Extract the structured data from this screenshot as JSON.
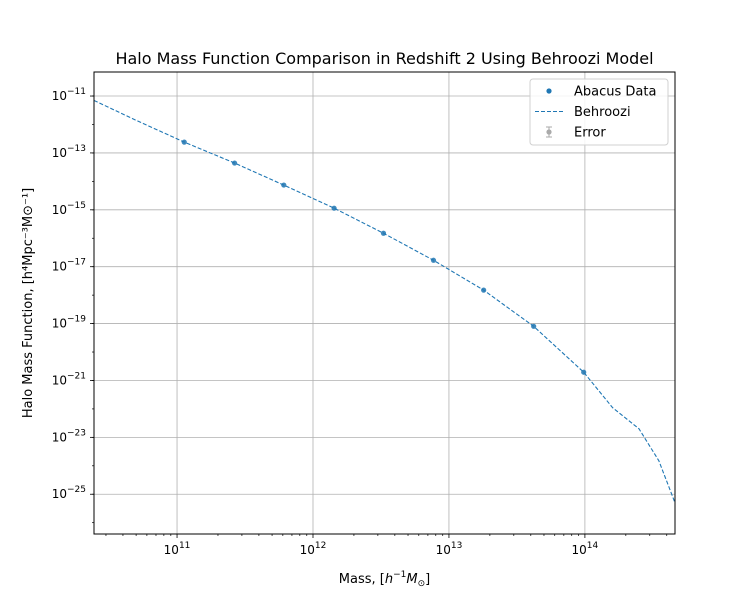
{
  "chart_data": {
    "type": "scatter",
    "title": "Halo Mass Function Comparison in Redshift 2 Using Behroozi Model",
    "xlabel_prefix": "Mass, [",
    "xlabel_math": "h",
    "xlabel_sup": "−1",
    "xlabel_math2": "M",
    "xlabel_sub": "⊙",
    "xlabel_suffix": "]",
    "ylabel": "Halo Mass Function, [h⁴Mpc⁻³M⊙⁻¹]",
    "x_scale": "log",
    "y_scale": "log",
    "xlim": [
      24500000000.0,
      460000000000000.0
    ],
    "ylim": [
      4e-27,
      7e-11
    ],
    "x_ticks": [
      {
        "base": "10",
        "exp": "11",
        "value": 100000000000.0
      },
      {
        "base": "10",
        "exp": "12",
        "value": 1000000000000.0
      },
      {
        "base": "10",
        "exp": "13",
        "value": 10000000000000.0
      },
      {
        "base": "10",
        "exp": "14",
        "value": 100000000000000.0
      }
    ],
    "y_ticks": [
      {
        "base": "10",
        "exp": "−11",
        "value": 1e-11
      },
      {
        "base": "10",
        "exp": "−13",
        "value": 1e-13
      },
      {
        "base": "10",
        "exp": "−15",
        "value": 1e-15
      },
      {
        "base": "10",
        "exp": "−17",
        "value": 1e-17
      },
      {
        "base": "10",
        "exp": "−19",
        "value": 1e-19
      },
      {
        "base": "10",
        "exp": "−21",
        "value": 1e-21
      },
      {
        "base": "10",
        "exp": "−23",
        "value": 1e-23
      },
      {
        "base": "10",
        "exp": "−25",
        "value": 1e-25
      }
    ],
    "grid": true,
    "legend_position": "top-right",
    "series": [
      {
        "name": "Abacus Data",
        "kind": "points",
        "color": "#1f77b4",
        "x": [
          113000000000.0,
          265000000000.0,
          610000000000.0,
          1430000000000.0,
          3300000000000.0,
          7700000000000.0,
          18000000000000.0,
          42000000000000.0,
          98000000000000.0
        ],
        "y": [
          2.4e-13,
          4.4e-14,
          7.4e-15,
          1.14e-15,
          1.5e-16,
          1.68e-17,
          1.5e-18,
          8e-20,
          1.95e-21
        ]
      },
      {
        "name": "Behroozi",
        "kind": "dashed-line",
        "color": "#1f77b4",
        "x": [
          24500000000.0,
          50000000000.0,
          113000000000.0,
          265000000000.0,
          610000000000.0,
          1430000000000.0,
          3300000000000.0,
          7700000000000.0,
          18000000000000.0,
          42000000000000.0,
          98000000000000.0,
          160000000000000.0,
          250000000000000.0,
          350000000000000.0,
          460000000000000.0
        ],
        "y": [
          7e-12,
          1.4e-12,
          2.4e-13,
          4.4e-14,
          7.4e-15,
          1.14e-15,
          1.5e-16,
          1.68e-17,
          1.5e-18,
          8e-20,
          1.95e-21,
          1.1e-22,
          2e-23,
          1.5e-24,
          5e-26
        ]
      },
      {
        "name": "Error",
        "kind": "errorbar-legend",
        "color": "#aaaaaa"
      }
    ]
  }
}
